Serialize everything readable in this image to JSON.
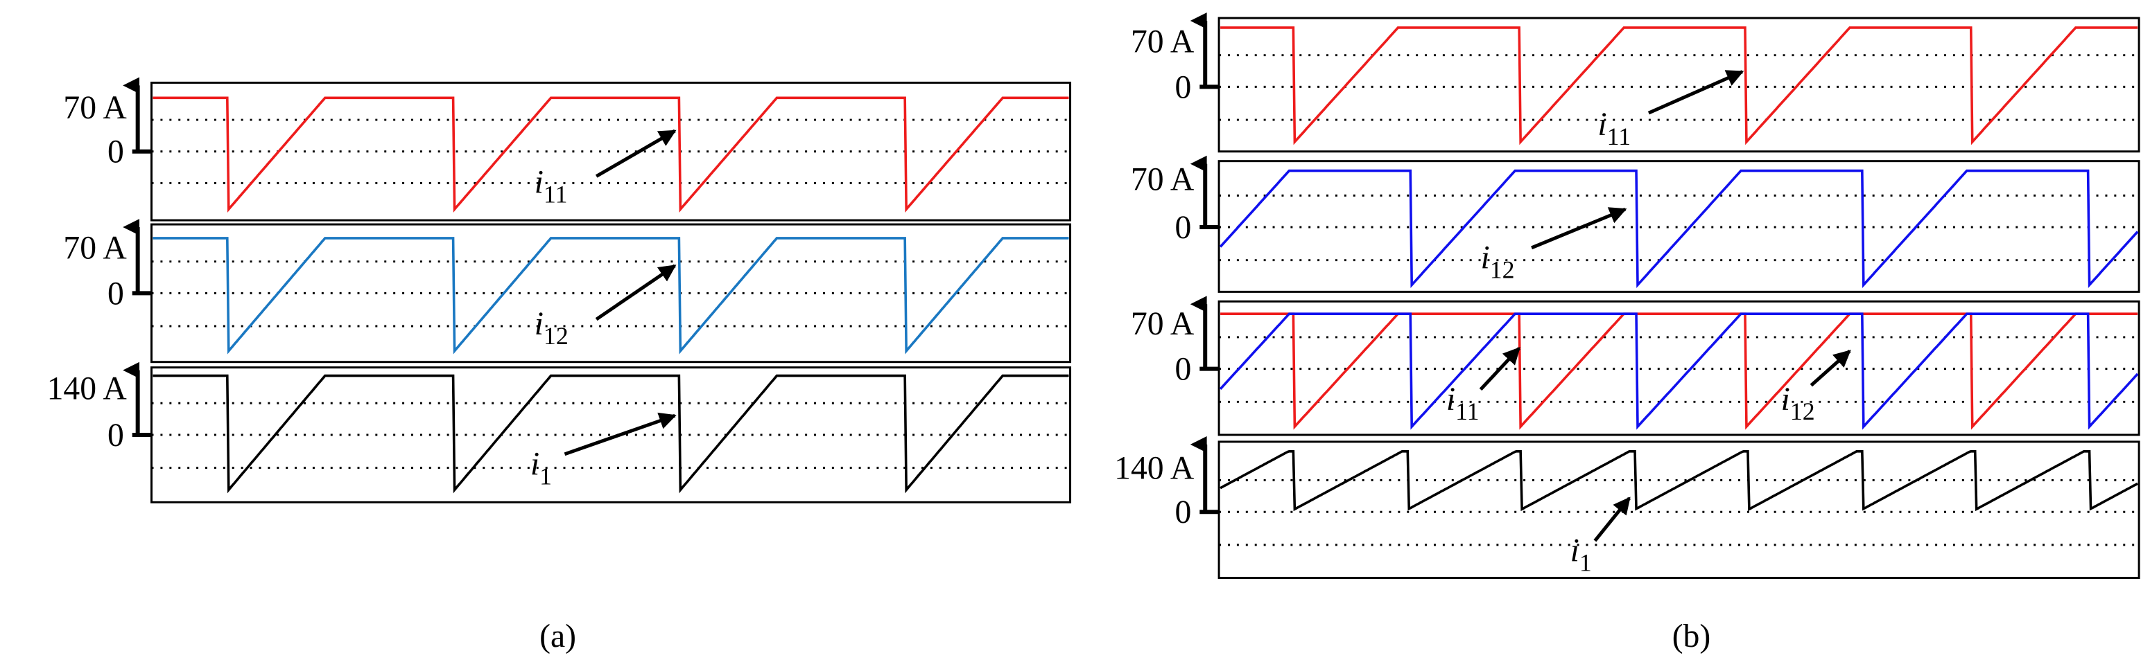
{
  "panel_a": {
    "caption": "(a)",
    "plots": [
      {
        "scale_label": "70 A",
        "zero_label": "0",
        "annotations": [
          {
            "symbol": "i",
            "subscript": "11"
          }
        ]
      },
      {
        "scale_label": "70 A",
        "zero_label": "0",
        "annotations": [
          {
            "symbol": "i",
            "subscript": "12"
          }
        ]
      },
      {
        "scale_label": "140 A",
        "zero_label": "0",
        "annotations": [
          {
            "symbol": "i",
            "subscript": "1"
          }
        ]
      }
    ]
  },
  "panel_b": {
    "caption": "(b)",
    "plots": [
      {
        "scale_label": "70 A",
        "zero_label": "0",
        "annotations": [
          {
            "symbol": "i",
            "subscript": "11"
          }
        ]
      },
      {
        "scale_label": "70 A",
        "zero_label": "0",
        "annotations": [
          {
            "symbol": "i",
            "subscript": "12"
          }
        ]
      },
      {
        "scale_label": "70 A",
        "zero_label": "0",
        "annotations": [
          {
            "symbol": "i",
            "subscript": "11"
          },
          {
            "symbol": "i",
            "subscript": "12"
          }
        ]
      },
      {
        "scale_label": "140 A",
        "zero_label": "0",
        "annotations": [
          {
            "symbol": "i",
            "subscript": "1"
          }
        ]
      }
    ]
  }
}
